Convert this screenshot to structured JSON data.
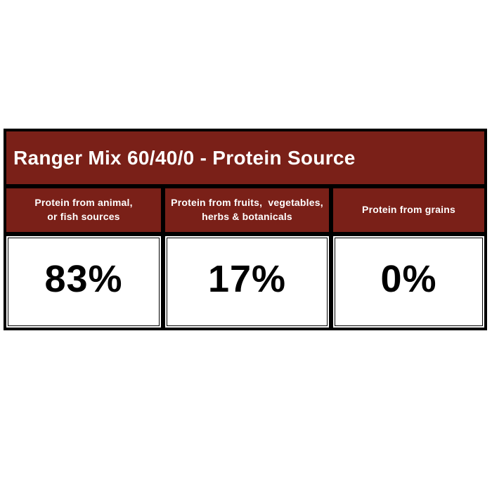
{
  "chart_data": {
    "type": "table",
    "title": "Ranger Mix 60/40/0 - Protein Source",
    "categories": [
      "Protein from animal, or fish sources",
      "Protein from fruits,  vegetables, herbs & botanicals",
      "Protein from grains"
    ],
    "values": [
      83,
      17,
      0
    ],
    "unit": "%"
  },
  "table": {
    "title": "Ranger Mix 60/40/0 - Protein Source",
    "columns": [
      {
        "header": "Protein from animal,\nor fish sources",
        "value": "83%"
      },
      {
        "header": "Protein from fruits,  vegetables,\nherbs & botanicals",
        "value": "17%"
      },
      {
        "header": "Protein from grains",
        "value": "0%"
      }
    ],
    "colors": {
      "header_bg": "#7a2018",
      "header_text": "#ffffff",
      "border": "#000000",
      "value_bg": "#ffffff",
      "value_text": "#000000",
      "page_bg": "#ffffff"
    }
  }
}
